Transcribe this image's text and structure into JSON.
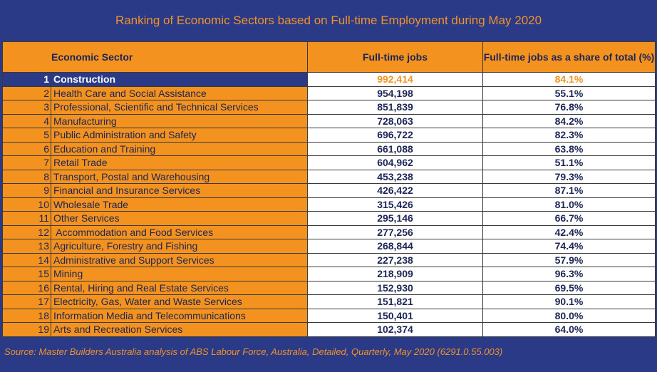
{
  "chart_data": {
    "type": "table",
    "title": "Ranking of Economic Sectors based on Full-time Employment during May 2020",
    "columns": [
      "Economic Sector",
      "Full-time jobs",
      "Full-time jobs as a share of total (%)"
    ],
    "rows": [
      {
        "rank": "1",
        "sector": "Construction",
        "jobs": "992,414",
        "share": "84.1%"
      },
      {
        "rank": "2",
        "sector": "Health Care and Social Assistance",
        "jobs": "954,198",
        "share": "55.1%"
      },
      {
        "rank": "3",
        "sector": "Professional, Scientific and Technical Services",
        "jobs": "851,839",
        "share": "76.8%"
      },
      {
        "rank": "4",
        "sector": "Manufacturing",
        "jobs": "728,063",
        "share": "84.2%"
      },
      {
        "rank": "5",
        "sector": "Public Administration and Safety",
        "jobs": "696,722",
        "share": "82.3%"
      },
      {
        "rank": "6",
        "sector": "Education and Training",
        "jobs": "661,088",
        "share": "63.8%"
      },
      {
        "rank": "7",
        "sector": "Retail Trade",
        "jobs": "604,962",
        "share": "51.1%"
      },
      {
        "rank": "8",
        "sector": "Transport, Postal and Warehousing",
        "jobs": "453,238",
        "share": "79.3%"
      },
      {
        "rank": "9",
        "sector": "Financial and Insurance Services",
        "jobs": "426,422",
        "share": "87.1%"
      },
      {
        "rank": "10",
        "sector": "Wholesale Trade",
        "jobs": "315,426",
        "share": "81.0%"
      },
      {
        "rank": "11",
        "sector": "Other Services",
        "jobs": "295,146",
        "share": "66.7%"
      },
      {
        "rank": "12",
        "sector": " Accommodation and Food Services",
        "jobs": "277,256",
        "share": "42.4%"
      },
      {
        "rank": "13",
        "sector": "Agriculture, Forestry and Fishing",
        "jobs": "268,844",
        "share": "74.4%"
      },
      {
        "rank": "14",
        "sector": "Administrative and Support Services",
        "jobs": "227,238",
        "share": "57.9%"
      },
      {
        "rank": "15",
        "sector": "Mining",
        "jobs": "218,909",
        "share": "96.3%"
      },
      {
        "rank": "16",
        "sector": "Rental, Hiring and Real Estate Services",
        "jobs": "152,930",
        "share": "69.5%"
      },
      {
        "rank": "17",
        "sector": "Electricity, Gas, Water and Waste Services",
        "jobs": "151,821",
        "share": "90.1%"
      },
      {
        "rank": "18",
        "sector": "Information Media and Telecommunications",
        "jobs": "150,401",
        "share": "80.0%"
      },
      {
        "rank": "19",
        "sector": "Arts and Recreation Services",
        "jobs": "102,374",
        "share": "64.0%"
      }
    ],
    "highlight_row": "1",
    "source": "Source: Master Builders Australia analysis of ABS Labour Force, Australia, Detailed, Quarterly, May 2020 (6291.0.55.003)"
  },
  "colors": {
    "background": "#2a3a86",
    "accent_orange": "#f3921e",
    "cell_white": "#ffffff",
    "text_dark": "#1c2556"
  }
}
